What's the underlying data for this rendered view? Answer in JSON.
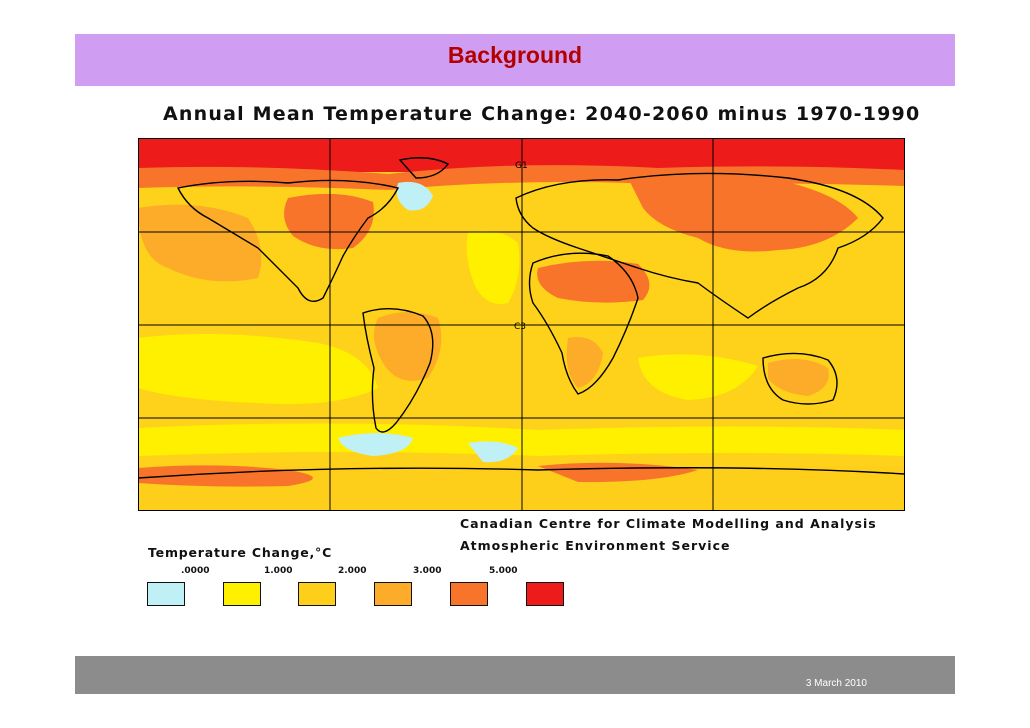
{
  "slide": {
    "title": "Background",
    "footer_date": "3 March  2010"
  },
  "map": {
    "title": "Annual Mean Temperature Change: 2040-2060 minus 1970-1990",
    "gridline_labels": [
      "G1",
      "C3"
    ],
    "credit_line_1": "Canadian Centre for Climate Modelling and Analysis",
    "credit_line_2": "Atmospheric Environment Service",
    "colors": {
      "ocean_base": "#fed21a",
      "level_0": "#bff0f5",
      "level_1": "#fff000",
      "level_2": "#fecf1a",
      "level_3": "#fcac28",
      "level_4": "#f7742a",
      "level_5": "#ee1b1b"
    }
  },
  "legend": {
    "title": "Temperature Change,°C",
    "ticks": [
      ".0000",
      "1.000",
      "2.000",
      "3.000",
      "5.000"
    ],
    "swatch_colors": [
      "#bff0f5",
      "#fff000",
      "#fecf1a",
      "#fcac28",
      "#f7742a",
      "#ee1b1b"
    ]
  }
}
